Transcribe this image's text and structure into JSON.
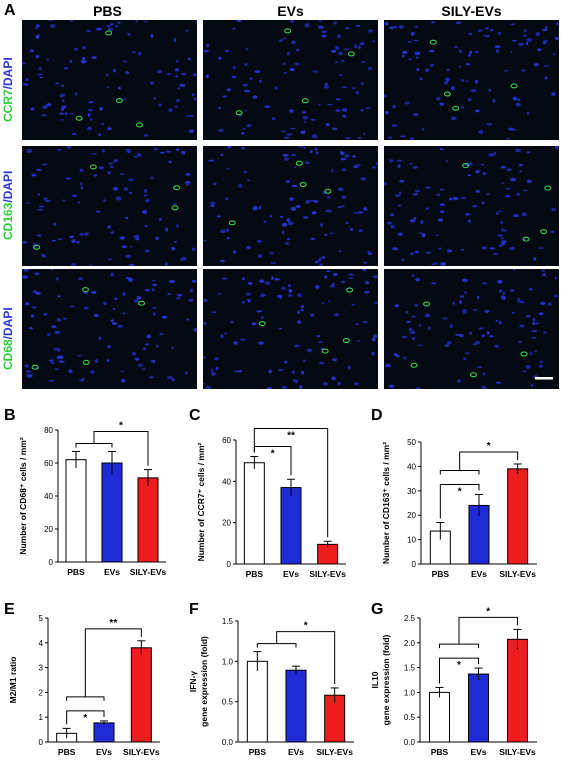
{
  "panel_a": {
    "letter": "A",
    "columns": [
      "PBS",
      "EVs",
      "SILY-EVs"
    ],
    "rows": [
      {
        "marker": "CCR7",
        "stain": "/DAPI",
        "marker_color": "#29d03a",
        "stain_color": "#2a35d8"
      },
      {
        "marker": "CD163",
        "stain": "/DAPI",
        "marker_color": "#29d03a",
        "stain_color": "#2a35d8"
      },
      {
        "marker": "CD68",
        "stain": "/DAPI",
        "marker_color": "#29d03a",
        "stain_color": "#2a35d8"
      }
    ]
  },
  "colors": {
    "PBS": "#ffffff",
    "EVs": "#1f2bd6",
    "SILY-EVs": "#ef1d1d"
  },
  "chart_data": [
    {
      "panel": "B",
      "type": "bar",
      "categories": [
        "PBS",
        "EVs",
        "SILY-EVs"
      ],
      "values": [
        62,
        60,
        51
      ],
      "errors": [
        5,
        7,
        5
      ],
      "ylim": [
        0,
        80
      ],
      "yticks": [
        0,
        20,
        40,
        60,
        80
      ],
      "ytick_labels": [
        "0",
        "20",
        "40",
        "60",
        "80"
      ],
      "ylabel": "Number of CD68⁺ cells / mm²",
      "significance": [
        {
          "type": "group",
          "from": [
            0,
            1
          ],
          "to": 2,
          "label": "*"
        }
      ]
    },
    {
      "panel": "C",
      "type": "bar",
      "categories": [
        "PBS",
        "EVs",
        "SILY-EVs"
      ],
      "values": [
        49,
        37,
        9.5
      ],
      "errors": [
        3,
        4,
        1.5
      ],
      "ylim": [
        0,
        60
      ],
      "yticks": [
        0,
        20,
        40,
        60
      ],
      "ytick_labels": [
        "0",
        "20",
        "40",
        "60"
      ],
      "ylabel": "Number of CCR7⁺ cells / mm²",
      "significance": [
        {
          "type": "pair",
          "from": 0,
          "to": 1,
          "label": "*"
        },
        {
          "type": "pair",
          "from": 0,
          "to": 2,
          "label": "**"
        }
      ]
    },
    {
      "panel": "D",
      "type": "bar",
      "categories": [
        "PBS",
        "EVs",
        "SILY-EVs"
      ],
      "values": [
        13.5,
        24,
        39
      ],
      "errors": [
        3.5,
        4.5,
        2
      ],
      "ylim": [
        0,
        50
      ],
      "yticks": [
        0,
        10,
        20,
        30,
        40,
        50
      ],
      "ytick_labels": [
        "0",
        "10",
        "20",
        "30",
        "40",
        "50"
      ],
      "ylabel": "Number of CD163⁺ cells / mm²",
      "significance": [
        {
          "type": "pair",
          "from": 0,
          "to": 1,
          "label": "*"
        },
        {
          "type": "group",
          "from": [
            0,
            1
          ],
          "to": 2,
          "label": "*"
        }
      ]
    },
    {
      "panel": "E",
      "type": "bar",
      "categories": [
        "PBS",
        "EVs",
        "SILY-EVs"
      ],
      "values": [
        0.35,
        0.77,
        3.8
      ],
      "errors": [
        0.2,
        0.08,
        0.28
      ],
      "ylim": [
        0,
        5
      ],
      "yticks": [
        0,
        1,
        2,
        3,
        4,
        5
      ],
      "ytick_labels": [
        "0",
        "1",
        "2",
        "3",
        "4",
        "5"
      ],
      "ylabel": "M2/M1 ratio",
      "significance": [
        {
          "type": "pair",
          "from": 0,
          "to": 1,
          "label": "*"
        },
        {
          "type": "group",
          "from": [
            0,
            1
          ],
          "to": 2,
          "label": "**"
        }
      ]
    },
    {
      "panel": "F",
      "type": "bar",
      "categories": [
        "PBS",
        "EVs",
        "SILY-EVs"
      ],
      "values": [
        1.0,
        0.89,
        0.58
      ],
      "errors": [
        0.12,
        0.05,
        0.09
      ],
      "ylim": [
        0,
        1.5
      ],
      "yticks": [
        0,
        0.5,
        1.0,
        1.5
      ],
      "ytick_labels": [
        "0.0",
        "0.5",
        "1.0",
        "1.5"
      ],
      "ylabel": [
        "IFN-γ",
        "gene expression (fold)"
      ],
      "significance": [
        {
          "type": "group",
          "from": [
            0,
            1
          ],
          "to": 2,
          "label": "*"
        }
      ]
    },
    {
      "panel": "G",
      "type": "bar",
      "categories": [
        "PBS",
        "EVs",
        "SILY-EVs"
      ],
      "values": [
        1.0,
        1.37,
        2.07
      ],
      "errors": [
        0.1,
        0.12,
        0.2
      ],
      "ylim": [
        0,
        2.5
      ],
      "yticks": [
        0,
        0.5,
        1.0,
        1.5,
        2.0,
        2.5
      ],
      "ytick_labels": [
        "0.0",
        "0.5",
        "1.0",
        "1.5",
        "2.0",
        "2.5"
      ],
      "ylabel": [
        "IL10",
        "gene expression (fold)"
      ],
      "significance": [
        {
          "type": "pair",
          "from": 0,
          "to": 1,
          "label": "*"
        },
        {
          "type": "group",
          "from": [
            0,
            1
          ],
          "to": 2,
          "label": "*"
        }
      ]
    }
  ]
}
